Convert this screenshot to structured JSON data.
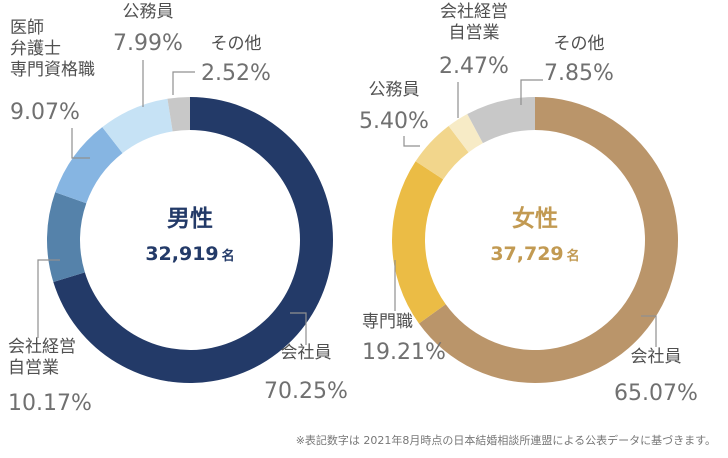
{
  "chart_data": [
    {
      "type": "pie",
      "style": "donut",
      "center_title": "男性",
      "center_count": "32,919",
      "center_unit": "名",
      "center_color": "#233a68",
      "slices": [
        {
          "label": [
            "会社員"
          ],
          "value_text": "70.25%",
          "value": 70.25,
          "color": "#233a68"
        },
        {
          "label": [
            "会社経営",
            "自営業"
          ],
          "value_text": "10.17%",
          "value": 10.17,
          "color": "#5582aa"
        },
        {
          "label": [
            "医師",
            "弁護士",
            "専門資格職"
          ],
          "value_text": "9.07%",
          "value": 9.07,
          "color": "#86b5e2"
        },
        {
          "label": [
            "公務員"
          ],
          "value_text": "7.99%",
          "value": 7.99,
          "color": "#c6e2f5"
        },
        {
          "label": [
            "その他"
          ],
          "value_text": "2.52%",
          "value": 2.52,
          "color": "#c8c8c8"
        }
      ]
    },
    {
      "type": "pie",
      "style": "donut",
      "center_title": "女性",
      "center_count": "37,729",
      "center_unit": "名",
      "center_color": "#c29a52",
      "slices": [
        {
          "label": [
            "会社員"
          ],
          "value_text": "65.07%",
          "value": 65.07,
          "color": "#ba956a"
        },
        {
          "label": [
            "専門職"
          ],
          "value_text": "19.21%",
          "value": 19.21,
          "color": "#ebbc45"
        },
        {
          "label": [
            "公務員"
          ],
          "value_text": "5.40%",
          "value": 5.4,
          "color": "#f2d68c"
        },
        {
          "label": [
            "会社経営",
            "自営業"
          ],
          "value_text": "2.47%",
          "value": 2.47,
          "color": "#f7ebc6"
        },
        {
          "label": [
            "その他"
          ],
          "value_text": "7.85%",
          "value": 7.85,
          "color": "#c8c8c8"
        }
      ]
    }
  ],
  "footnote": "※表記数字は 2021年8月時点の日本結婚相談所連盟による公表データに基づきます。"
}
